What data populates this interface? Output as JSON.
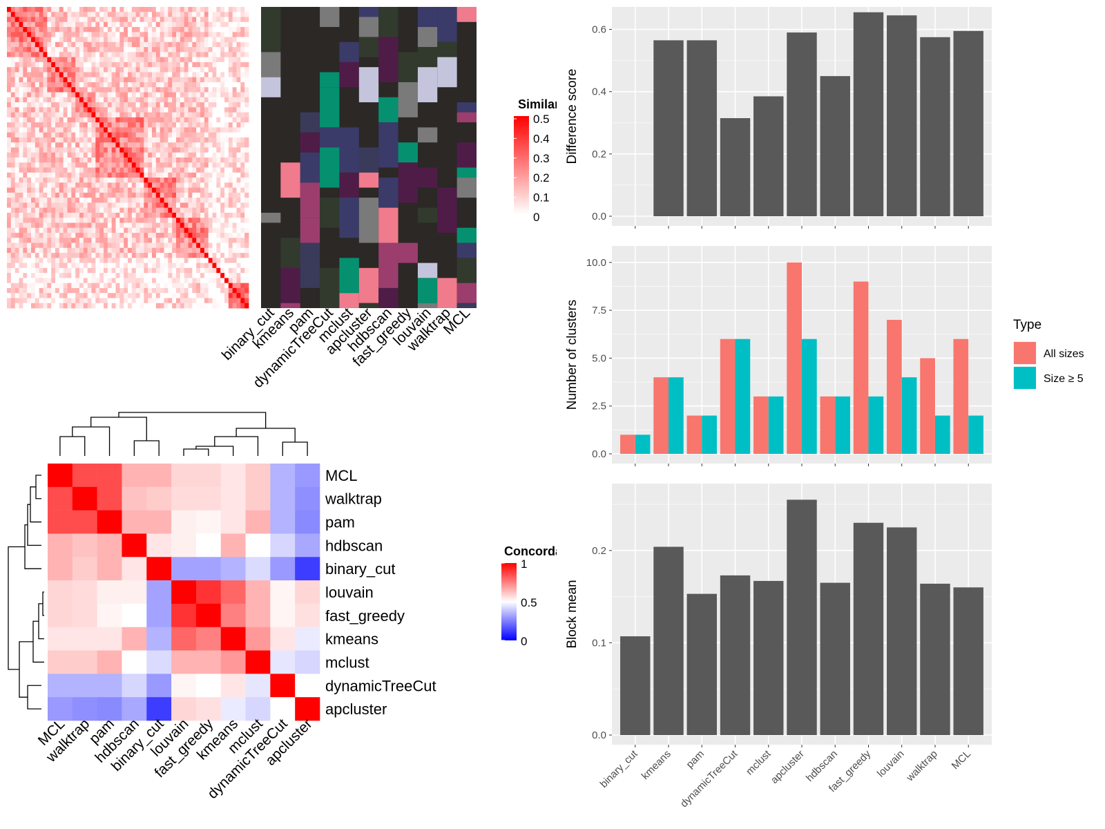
{
  "chart_data": [
    {
      "type": "heatmap",
      "panel": "similarity",
      "legend_title": "Similarity",
      "legend_ticks": [
        "0",
        "0.1",
        "0.2",
        "0.3",
        "0.4",
        "0.5"
      ],
      "legend_values": [
        0,
        0.1,
        0.2,
        0.3,
        0.4,
        0.5
      ],
      "annotation_columns": [
        "binary_cut",
        "kmeans",
        "pam",
        "dynamicTreeCut",
        "mclust",
        "apcluster",
        "hdbscan",
        "fast_greedy",
        "louvain",
        "walktrap",
        "MCL"
      ],
      "colors": {
        "low": "#ffffff",
        "high": "#ff0000",
        "annotation_bg": "#2b2826"
      }
    },
    {
      "type": "heatmap",
      "panel": "concordance",
      "legend_title": "Concordance",
      "legend_ticks": [
        "0",
        "0.5",
        "1"
      ],
      "legend_values": [
        0,
        0.5,
        1
      ],
      "row_labels": [
        "MCL",
        "walktrap",
        "pam",
        "hdbscan",
        "binary_cut",
        "louvain",
        "fast_greedy",
        "kmeans",
        "mclust",
        "dynamicTreeCut",
        "apcluster"
      ],
      "col_labels": [
        "MCL",
        "walktrap",
        "pam",
        "hdbscan",
        "binary_cut",
        "louvain",
        "fast_greedy",
        "kmeans",
        "mclust",
        "dynamicTreeCut",
        "apcluster"
      ],
      "matrix": [
        [
          1.0,
          0.85,
          0.85,
          0.65,
          0.65,
          0.58,
          0.58,
          0.55,
          0.6,
          0.35,
          0.3
        ],
        [
          0.85,
          1.0,
          0.85,
          0.62,
          0.6,
          0.57,
          0.57,
          0.55,
          0.6,
          0.35,
          0.28
        ],
        [
          0.85,
          0.85,
          1.0,
          0.65,
          0.65,
          0.53,
          0.52,
          0.55,
          0.65,
          0.35,
          0.27
        ],
        [
          0.65,
          0.62,
          0.65,
          1.0,
          0.55,
          0.53,
          0.5,
          0.65,
          0.5,
          0.42,
          0.33
        ],
        [
          0.65,
          0.6,
          0.65,
          0.55,
          1.0,
          0.32,
          0.32,
          0.35,
          0.43,
          0.3,
          0.12
        ],
        [
          0.58,
          0.57,
          0.53,
          0.53,
          0.32,
          1.0,
          0.9,
          0.8,
          0.65,
          0.52,
          0.58
        ],
        [
          0.58,
          0.57,
          0.52,
          0.5,
          0.32,
          0.9,
          1.0,
          0.75,
          0.65,
          0.52,
          0.56
        ],
        [
          0.55,
          0.55,
          0.55,
          0.65,
          0.35,
          0.8,
          0.75,
          1.0,
          0.7,
          0.55,
          0.46
        ],
        [
          0.6,
          0.6,
          0.65,
          0.5,
          0.43,
          0.65,
          0.65,
          0.7,
          1.0,
          0.45,
          0.42
        ],
        [
          0.35,
          0.35,
          0.35,
          0.42,
          0.3,
          0.52,
          0.5,
          0.55,
          0.45,
          1.0,
          0.5
        ],
        [
          0.3,
          0.28,
          0.27,
          0.33,
          0.12,
          0.58,
          0.56,
          0.46,
          0.42,
          0.5,
          1.0
        ]
      ],
      "colors": {
        "low": "#0000ff",
        "mid": "#ffffff",
        "high": "#ff0000"
      }
    },
    {
      "type": "bar",
      "panel": "difference_score",
      "ylabel": "Difference score",
      "categories": [
        "binary_cut",
        "kmeans",
        "pam",
        "dynamicTreeCut",
        "mclust",
        "apcluster",
        "hdbscan",
        "fast_greedy",
        "louvain",
        "walktrap",
        "MCL"
      ],
      "values": [
        0,
        0.565,
        0.565,
        0.315,
        0.385,
        0.59,
        0.45,
        0.655,
        0.645,
        0.575,
        0.595
      ],
      "ylim": [
        0,
        0.65
      ],
      "yticks": [
        "0.0",
        "0.2",
        "0.4",
        "0.6"
      ],
      "ytick_values": [
        0,
        0.2,
        0.4,
        0.6
      ],
      "bar_color": "#595959",
      "grid": true
    },
    {
      "type": "bar",
      "panel": "number_of_clusters",
      "ylabel": "Number of clusters",
      "categories": [
        "binary_cut",
        "kmeans",
        "pam",
        "dynamicTreeCut",
        "mclust",
        "apcluster",
        "hdbscan",
        "fast_greedy",
        "louvain",
        "walktrap",
        "MCL"
      ],
      "series": [
        {
          "name": "All sizes",
          "values": [
            1,
            4,
            2,
            6,
            3,
            10,
            3,
            9,
            7,
            5,
            6
          ],
          "color": "#f8766d"
        },
        {
          "name": "Size ≥ 5",
          "values": [
            1,
            4,
            2,
            6,
            3,
            6,
            3,
            3,
            4,
            2,
            2
          ],
          "color": "#00bfc4"
        }
      ],
      "ylim": [
        0,
        10.5
      ],
      "yticks": [
        "0.0",
        "2.5",
        "5.0",
        "7.5",
        "10.0"
      ],
      "ytick_values": [
        0,
        2.5,
        5,
        7.5,
        10
      ],
      "legend_title": "Type",
      "legend_position": "right",
      "grid": true
    },
    {
      "type": "bar",
      "panel": "block_mean",
      "ylabel": "Block mean",
      "categories": [
        "binary_cut",
        "kmeans",
        "pam",
        "dynamicTreeCut",
        "mclust",
        "apcluster",
        "hdbscan",
        "fast_greedy",
        "louvain",
        "walktrap",
        "MCL"
      ],
      "values": [
        0.107,
        0.204,
        0.153,
        0.173,
        0.167,
        0.255,
        0.165,
        0.23,
        0.225,
        0.164,
        0.16
      ],
      "ylim": [
        0,
        0.265
      ],
      "yticks": [
        "0.0",
        "0.1",
        "0.2"
      ],
      "ytick_values": [
        0,
        0.1,
        0.2
      ],
      "bar_color": "#595959",
      "grid": true
    }
  ]
}
